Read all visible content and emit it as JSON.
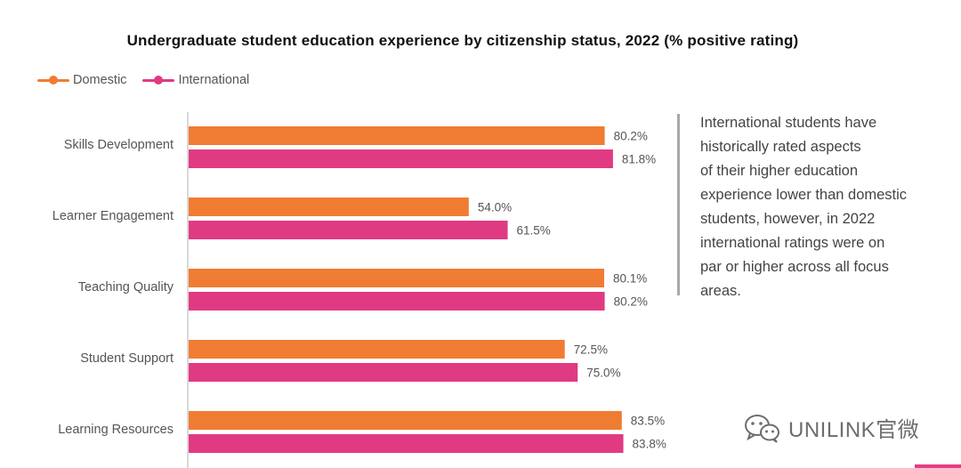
{
  "chart_data": {
    "type": "bar",
    "orientation": "horizontal",
    "title": "Undergraduate student education experience by citizenship status, 2022 (% positive rating)",
    "categories": [
      "Skills Development",
      "Learner Engagement",
      "Teaching Quality",
      "Student Support",
      "Learning Resources"
    ],
    "series": [
      {
        "name": "Domestic",
        "color": "#f07c33",
        "values": [
          80.2,
          54.0,
          80.1,
          72.5,
          83.5
        ]
      },
      {
        "name": "International",
        "color": "#e03a83",
        "values": [
          81.8,
          61.5,
          80.2,
          75.0,
          83.8
        ]
      }
    ],
    "value_suffix": "%",
    "xlim": [
      0,
      100
    ],
    "legend": "top-left"
  },
  "note": {
    "lines": [
      "International students have",
      "historically rated aspects",
      "of their higher education",
      "experience lower than domestic",
      "students, however, in 2022",
      "international ratings were on",
      "par or higher across all focus",
      "areas."
    ]
  },
  "watermark": {
    "text": "UNILINK官微",
    "icon": "wechat-icon"
  }
}
